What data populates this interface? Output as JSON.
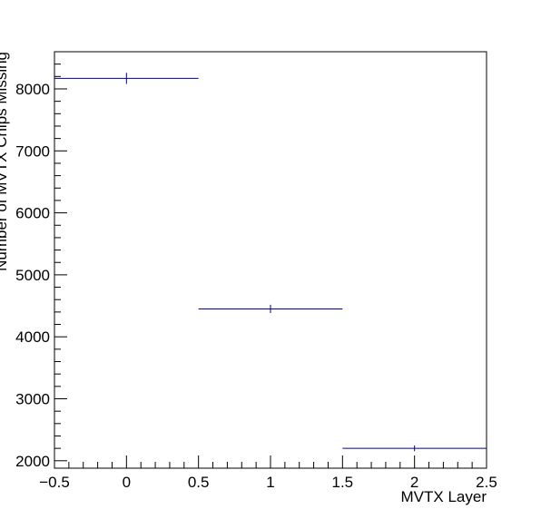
{
  "chart_data": {
    "type": "scatter",
    "title": "",
    "xlabel": "MVTX Layer",
    "ylabel": "Number of MVTX Chips Missing",
    "xlim": [
      -0.5,
      2.5
    ],
    "ylim": [
      1880,
      8600
    ],
    "x_ticks": [
      -0.5,
      0,
      0.5,
      1,
      1.5,
      2,
      2.5
    ],
    "x_tick_labels": [
      "−0.5",
      "0",
      "0.5",
      "1",
      "1.5",
      "2",
      "2.5"
    ],
    "y_ticks": [
      2000,
      3000,
      4000,
      5000,
      6000,
      7000,
      8000
    ],
    "y_tick_labels": [
      "2000",
      "3000",
      "4000",
      "5000",
      "6000",
      "7000",
      "8000"
    ],
    "grid": false,
    "legend": "none",
    "series": [
      {
        "color": "#000099",
        "points": [
          {
            "x": 0,
            "y": 8170,
            "xerr": 0.5,
            "yerr": 90
          },
          {
            "x": 1,
            "y": 4450,
            "xerr": 0.5,
            "yerr": 67
          },
          {
            "x": 2,
            "y": 2200,
            "xerr": 0.5,
            "yerr": 47
          }
        ]
      }
    ]
  }
}
